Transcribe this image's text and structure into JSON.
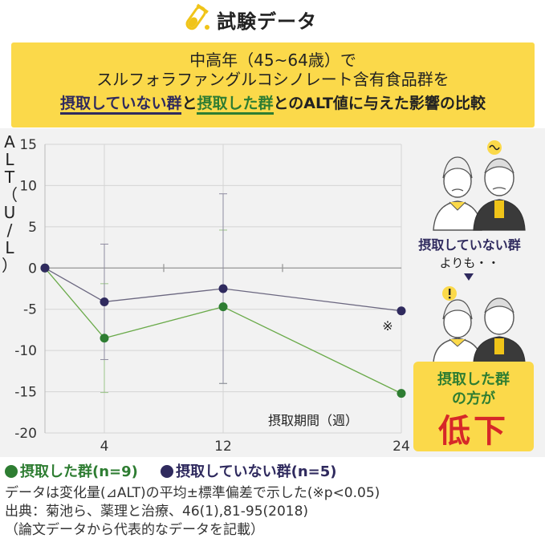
{
  "header": {
    "title": "試験データ"
  },
  "banner": {
    "line1": "中高年（45~64歳）で",
    "line2": "スルフォラファングルコシノレート含有食品群を",
    "line3_part1": "摂取していない群",
    "line3_part2": "と",
    "line3_part3": "摂取した群",
    "line3_part4": "とのALT値に与えた影響の比較"
  },
  "colors": {
    "green": "#2e7d32",
    "green_line": "#6aaa4a",
    "purple": "#2f2a5e",
    "yellow": "#fbd94a",
    "red": "#d62828"
  },
  "chart_data": {
    "type": "line",
    "ylabel": [
      "A",
      "L",
      "T",
      "（",
      "U",
      "/",
      "L",
      "）"
    ],
    "xlabel": "摂取期間（週）",
    "ylim": [
      -20,
      15
    ],
    "yticks": [
      "15",
      "10",
      "5",
      "0",
      "-5",
      "-10",
      "-15",
      "-20"
    ],
    "xticks": [
      "4",
      "12",
      "24"
    ],
    "x": [
      0,
      4,
      12,
      24
    ],
    "series": [
      {
        "name": "摂取した群(n=9)",
        "color": "#2e7d32",
        "values": [
          0,
          -8.5,
          -4.7,
          -15.2
        ],
        "error": [
          0,
          6.6,
          9.3,
          0
        ]
      },
      {
        "name": "摂取していない群(n=5)",
        "color": "#2f2a5e",
        "values": [
          0,
          -4.1,
          -2.5,
          -5.2
        ],
        "error": [
          0,
          7.0,
          11.5,
          0
        ]
      }
    ],
    "annotation": "※",
    "grid": true
  },
  "legend": {
    "green_label": "摂取した群(n=9)",
    "purple_label": "摂取していない群(n=5)"
  },
  "side": {
    "top_label": "摂取していない群",
    "top_sub": "よりも・・",
    "result_line1": "摂取した群",
    "result_line2": "の方が",
    "result_big": "低下"
  },
  "notes": {
    "line1": "データは変化量(⊿ALT)の平均±標準偏差で示した(※p<0.05)",
    "line2": "出典：菊池ら、薬理と治療、46(1),81-95(2018)",
    "line3": "（論文データから代表的なデータを記載）"
  }
}
